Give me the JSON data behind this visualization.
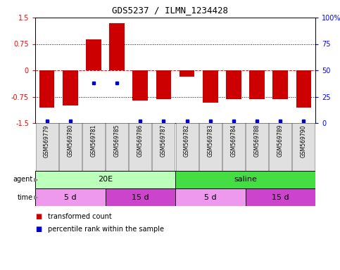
{
  "title": "GDS5237 / ILMN_1234428",
  "samples": [
    "GSM569779",
    "GSM569780",
    "GSM569781",
    "GSM569785",
    "GSM569786",
    "GSM569787",
    "GSM569782",
    "GSM569783",
    "GSM569784",
    "GSM569788",
    "GSM569789",
    "GSM569790"
  ],
  "bar_values": [
    -1.05,
    -1.0,
    0.88,
    1.35,
    -0.85,
    -0.82,
    -0.18,
    -0.92,
    -0.82,
    -0.82,
    -0.82,
    -1.05
  ],
  "percentile_values": [
    2,
    2,
    38,
    38,
    2,
    2,
    2,
    2,
    2,
    2,
    2,
    2
  ],
  "bar_color": "#cc0000",
  "dot_color": "#0000cc",
  "ylim": [
    -1.5,
    1.5
  ],
  "y_ticks_left": [
    -1.5,
    -0.75,
    0,
    0.75,
    1.5
  ],
  "y_ticks_right": [
    0,
    25,
    50,
    75,
    100
  ],
  "y_ticks_right_labels": [
    "0",
    "25",
    "50",
    "75",
    "100%"
  ],
  "hline_dashed_red": 0,
  "hlines_dotted": [
    -0.75,
    0.75
  ],
  "agent_groups": [
    {
      "label": "20E",
      "start": 0,
      "end": 6,
      "color": "#bbffbb"
    },
    {
      "label": "saline",
      "start": 6,
      "end": 12,
      "color": "#44dd44"
    }
  ],
  "time_groups": [
    {
      "label": "5 d",
      "start": 0,
      "end": 3,
      "color": "#ee99ee"
    },
    {
      "label": "15 d",
      "start": 3,
      "end": 6,
      "color": "#cc44cc"
    },
    {
      "label": "5 d",
      "start": 6,
      "end": 9,
      "color": "#ee99ee"
    },
    {
      "label": "15 d",
      "start": 9,
      "end": 12,
      "color": "#cc44cc"
    }
  ],
  "legend_items": [
    {
      "label": "transformed count",
      "color": "#cc0000"
    },
    {
      "label": "percentile rank within the sample",
      "color": "#0000cc"
    }
  ],
  "fig_width": 4.83,
  "fig_height": 3.84,
  "dpi": 100
}
